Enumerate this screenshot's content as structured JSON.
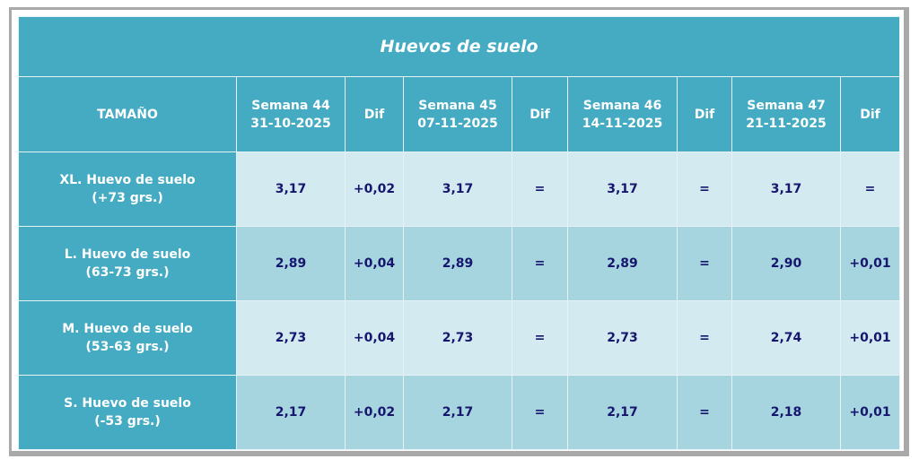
{
  "title": "Huevos de suelo",
  "header": {
    "size_label": "TAMAÑO",
    "weeks": [
      {
        "week": "Semana 44",
        "date": "31-10-2025"
      },
      {
        "week": "Semana 45",
        "date": "07-11-2025"
      },
      {
        "week": "Semana 46",
        "date": "14-11-2025"
      },
      {
        "week": "Semana 47",
        "date": "21-11-2025"
      }
    ],
    "dif_label": "Dif"
  },
  "rows": [
    {
      "name": "XL. Huevo de suelo",
      "range": "(+73 grs.)",
      "cells": [
        "3,17",
        "+0,02",
        "3,17",
        "=",
        "3,17",
        "=",
        "3,17",
        "="
      ]
    },
    {
      "name": "L. Huevo de suelo",
      "range": "(63-73 grs.)",
      "cells": [
        "2,89",
        "+0,04",
        "2,89",
        "=",
        "2,89",
        "=",
        "2,90",
        "+0,01"
      ]
    },
    {
      "name": "M. Huevo de suelo",
      "range": "(53-63 grs.)",
      "cells": [
        "2,73",
        "+0,04",
        "2,73",
        "=",
        "2,73",
        "=",
        "2,74",
        "+0,01"
      ]
    },
    {
      "name": "S. Huevo de suelo",
      "range": "(-53 grs.)",
      "cells": [
        "2,17",
        "+0,02",
        "2,17",
        "=",
        "2,17",
        "=",
        "2,18",
        "+0,01"
      ]
    }
  ],
  "colors": {
    "header": "#45abc3",
    "row_light": "#d3eaf0",
    "row_dark": "#a6d4df",
    "value_text": "#16166e"
  }
}
